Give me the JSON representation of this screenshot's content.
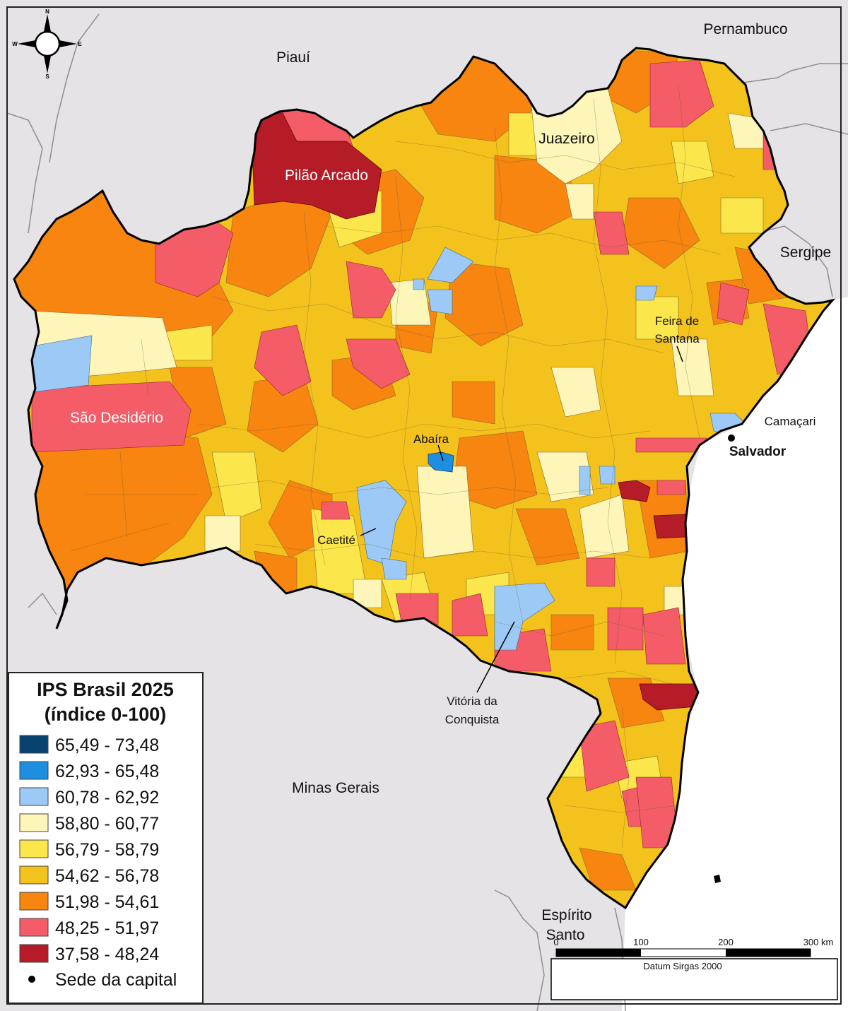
{
  "map": {
    "title": "IPS Brasil 2025",
    "subtitle": "(índice 0-100)",
    "state_labels": {
      "piaui": "Piauí",
      "pernambuco": "Pernambuco",
      "sergipe": "Sergipe",
      "minas_gerais": "Minas Gerais",
      "espirito_santo_1": "Espírito",
      "espirito_santo_2": "Santo"
    },
    "city_labels": {
      "juazeiro": "Juazeiro",
      "pilao_arcado": "Pilão Arcado",
      "sao_desiderio": "São Desidério",
      "feira_1": "Feira de",
      "feira_2": "Santana",
      "abaira": "Abaíra",
      "caetite": "Caetité",
      "camacari": "Camaçari",
      "salvador": "Salvador",
      "vitoria_1": "Vitória da",
      "vitoria_2": "Conquista"
    },
    "compass": {
      "n": "N",
      "s": "S",
      "e": "E",
      "w": "W"
    },
    "scale": {
      "ticks": [
        "0",
        "100",
        "200",
        "300 km"
      ],
      "datum": "Datum Sirgas 2000"
    },
    "legend": {
      "classes": [
        {
          "label": "65,49 - 73,48",
          "color": "#08426e"
        },
        {
          "label": "62,93 - 65,48",
          "color": "#1e8fe0"
        },
        {
          "label": "60,78 - 62,92",
          "color": "#9cc9f5"
        },
        {
          "label": "58,80 - 60,77",
          "color": "#fdf6b8"
        },
        {
          "label": "56,79 - 58,79",
          "color": "#fbe64c"
        },
        {
          "label": "54,62 - 56,78",
          "color": "#f3c21c"
        },
        {
          "label": "51,98 - 54,61",
          "color": "#f7850f"
        },
        {
          "label": "48,25 - 51,97",
          "color": "#f45c67"
        },
        {
          "label": "37,58 - 48,24",
          "color": "#b51c27"
        }
      ],
      "capital_label": "Sede da capital"
    }
  }
}
